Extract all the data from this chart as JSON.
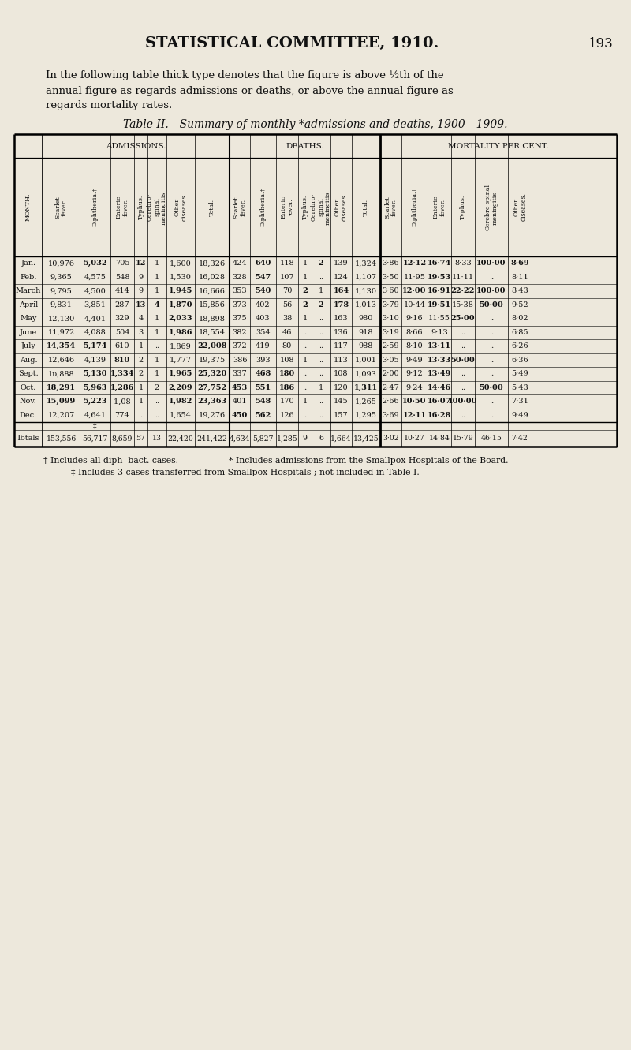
{
  "page_title": "STATISTICAL COMMITTEE, 1910.",
  "page_number": "193",
  "intro_line1": "In the following table thick type denotes that the figure is above ½th of the",
  "intro_line2": "annual figure as regards admissions or deaths, or above the annual figure as",
  "intro_line3": "regards mortality rates.",
  "table_title": "Table II.—Summary of monthly *admissions and deaths, 1900—1909.",
  "months": [
    "Jan.",
    "Feb.",
    "March",
    "April",
    "May",
    "June",
    "July",
    "Aug.",
    "Sept.",
    "Oct.",
    "Nov.",
    "Dec."
  ],
  "adm_scarlet": [
    "10,976",
    "9,365",
    "9,795",
    "9,831",
    "12,130",
    "11,972",
    "14,354",
    "12,646",
    "1υ,888",
    "18,291",
    "15,099",
    "12,207"
  ],
  "adm_diph": [
    "5,032",
    "4,575",
    "4,500",
    "3,851",
    "4,401",
    "4,088",
    "5,174",
    "4,139",
    "5,130",
    "5,963",
    "5,223",
    "4,641"
  ],
  "adm_enteric": [
    "705",
    "548",
    "414",
    "287",
    "329",
    "504",
    "610",
    "810",
    "1,334",
    "1,286",
    "1,0​8",
    "774"
  ],
  "adm_typhus": [
    "12",
    "9",
    "9",
    "13",
    "4",
    "3",
    "1",
    "2",
    "2",
    "1",
    "1",
    ".."
  ],
  "adm_cerebro": [
    "1",
    "1",
    "1",
    "4",
    "1",
    "1",
    "..",
    "1",
    "1",
    "2",
    "..",
    ".."
  ],
  "adm_other": [
    "1,600",
    "1,530",
    "1,945",
    "1,870",
    "2,033",
    "1,986",
    "1,869",
    "1,777",
    "1,965",
    "2,209",
    "1,982",
    "1,654"
  ],
  "adm_total": [
    "18,326",
    "16,028",
    "16,666",
    "15,856",
    "18,898",
    "18,554",
    "22,008",
    "19,375",
    "25,320",
    "27,752",
    "23,363",
    "19,276"
  ],
  "dea_scarlet": [
    "424",
    "328",
    "353",
    "373",
    "375",
    "382",
    "372",
    "386",
    "337",
    "453",
    "401",
    "450"
  ],
  "dea_diph": [
    "640",
    "547",
    "540",
    "402",
    "403",
    "354",
    "419",
    "393",
    "468",
    "551",
    "548",
    "562"
  ],
  "dea_enteric": [
    "118",
    "107",
    "70",
    "56",
    "38",
    "46",
    "80",
    "108",
    "180",
    "186",
    "170",
    "126"
  ],
  "dea_typhus": [
    "1",
    "1",
    "2",
    "2",
    "1",
    "..",
    "..",
    "1",
    "..",
    "..",
    "1",
    ".."
  ],
  "dea_cerebro": [
    "2",
    "..",
    "1",
    "2",
    "..",
    "..",
    "..",
    "..",
    "..",
    "1",
    "..",
    ".."
  ],
  "dea_other": [
    "139",
    "124",
    "164",
    "178",
    "163",
    "136",
    "117",
    "113",
    "108",
    "120",
    "145",
    "157"
  ],
  "dea_total": [
    "1,324",
    "1,107",
    "1,130",
    "1,013",
    "980",
    "918",
    "988",
    "1,001",
    "1,093",
    "1,311",
    "1,265",
    "1,295"
  ],
  "mort_scarlet": [
    "3·86",
    "3·50",
    "3·60",
    "3·79",
    "3·10",
    "3·19",
    "2·59",
    "3·05",
    "2·00",
    "2·47",
    "2·66",
    "3·69"
  ],
  "mort_diph": [
    "12·12",
    "11·95",
    "12·00",
    "10·44",
    "9·16",
    "8·66",
    "8·10",
    "9·49",
    "9·12",
    "9·24",
    "10·50",
    "12·11"
  ],
  "mort_enteric": [
    "16·74",
    "19·53",
    "16·91",
    "19·51",
    "11·55",
    "9·13",
    "13·11",
    "13·33",
    "13·49",
    "14·46",
    "16·07",
    "16·28"
  ],
  "mort_typhus": [
    "8·33",
    "11·11",
    "22·22",
    "15·38",
    "25·00",
    "..",
    "..",
    "50·00",
    "..",
    "..",
    "100·00",
    ".."
  ],
  "mort_cerebro": [
    "100·00",
    "..",
    "100·00",
    "50·00",
    "..",
    "..",
    "..",
    "..",
    "..",
    "50·00",
    "..",
    ".."
  ],
  "mort_other": [
    "8·69",
    "8·11",
    "8·43",
    "9·52",
    "8·02",
    "6·85",
    "6·26",
    "6·36",
    "5·49",
    "5·43",
    "7·31",
    "9·49"
  ],
  "totals_label": "Totals",
  "totals": [
    "153,556",
    "56,717",
    "8,659",
    "57",
    "13",
    "22,420",
    "241,422",
    "4,634",
    "5,827",
    "1,285",
    "9",
    "6",
    "1,664",
    "13,425",
    "3·02",
    "10·27",
    "14·84",
    "15·79",
    "46·15",
    "7·42"
  ],
  "footnote1": "† Includes all diph  bact. cases.",
  "footnote2": "* Includes admissions from the Smallpox Hospitals of the Board.",
  "footnote3": "‡ Includes 3 cases transferred from Smallpox Hospitals ; not included in Table I.",
  "bg_color": "#ede8dc",
  "text_color": "#111111",
  "bold_entries": {
    "adm_scarlet": [
      false,
      false,
      false,
      false,
      false,
      false,
      true,
      false,
      false,
      true,
      true,
      false
    ],
    "adm_diph": [
      true,
      false,
      false,
      false,
      false,
      false,
      true,
      false,
      true,
      true,
      true,
      false
    ],
    "adm_enteric": [
      false,
      false,
      false,
      false,
      false,
      false,
      false,
      true,
      true,
      true,
      false,
      false
    ],
    "adm_typhus": [
      true,
      false,
      false,
      true,
      false,
      false,
      false,
      false,
      false,
      false,
      false,
      false
    ],
    "adm_cerebro": [
      false,
      false,
      false,
      true,
      false,
      false,
      false,
      false,
      false,
      false,
      false,
      false
    ],
    "adm_other": [
      false,
      false,
      true,
      true,
      true,
      true,
      false,
      false,
      true,
      true,
      true,
      false
    ],
    "adm_total": [
      false,
      false,
      false,
      false,
      false,
      false,
      true,
      false,
      true,
      true,
      true,
      false
    ],
    "dea_scarlet": [
      false,
      false,
      false,
      false,
      false,
      false,
      false,
      false,
      false,
      true,
      false,
      true
    ],
    "dea_diph": [
      true,
      true,
      true,
      false,
      false,
      false,
      false,
      false,
      true,
      true,
      true,
      true
    ],
    "dea_enteric": [
      false,
      false,
      false,
      false,
      false,
      false,
      false,
      false,
      true,
      true,
      false,
      false
    ],
    "dea_typhus": [
      false,
      false,
      true,
      true,
      false,
      false,
      false,
      false,
      false,
      false,
      false,
      false
    ],
    "dea_cerebro": [
      true,
      false,
      false,
      true,
      false,
      false,
      false,
      false,
      false,
      false,
      false,
      false
    ],
    "dea_other": [
      false,
      false,
      true,
      true,
      false,
      false,
      false,
      false,
      false,
      false,
      false,
      false
    ],
    "dea_total": [
      false,
      false,
      false,
      false,
      false,
      false,
      false,
      false,
      false,
      true,
      false,
      false
    ],
    "mort_scarlet": [
      false,
      false,
      false,
      false,
      false,
      false,
      false,
      false,
      false,
      false,
      false,
      false
    ],
    "mort_diph": [
      true,
      false,
      true,
      false,
      false,
      false,
      false,
      false,
      false,
      false,
      true,
      true
    ],
    "mort_enteric": [
      true,
      true,
      true,
      true,
      false,
      false,
      true,
      true,
      true,
      true,
      true,
      true
    ],
    "mort_typhus": [
      false,
      false,
      true,
      false,
      true,
      false,
      false,
      true,
      false,
      false,
      true,
      false
    ],
    "mort_cerebro": [
      true,
      false,
      true,
      true,
      false,
      false,
      false,
      false,
      false,
      true,
      false,
      false
    ],
    "mort_other": [
      true,
      false,
      false,
      false,
      false,
      false,
      false,
      false,
      false,
      false,
      false,
      false
    ]
  }
}
